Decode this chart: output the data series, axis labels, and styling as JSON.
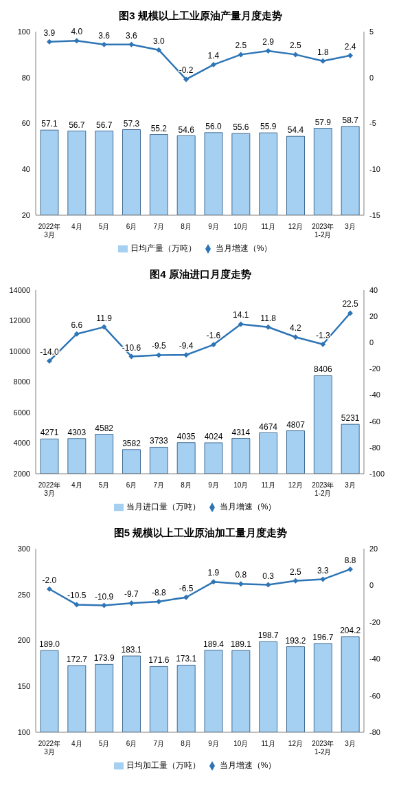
{
  "chart_data": [
    {
      "type": "bar",
      "title": "图3  规模以上工业原油产量月度走势",
      "categories": [
        "2022年\n3月",
        "4月",
        "5月",
        "6月",
        "7月",
        "8月",
        "9月",
        "10月",
        "11月",
        "12月",
        "2023年\n1-2月",
        "3月"
      ],
      "series": [
        {
          "name": "日均产量（万吨）",
          "color": "#a6d0f2",
          "values": [
            57.1,
            56.7,
            56.7,
            57.3,
            55.2,
            54.6,
            56.0,
            55.6,
            55.9,
            54.4,
            57.9,
            58.7
          ],
          "value_labels": [
            "57.1",
            "56.7",
            "56.7",
            "57.3",
            "55.2",
            "54.6",
            "56.0",
            "55.6",
            "55.9",
            "54.4",
            "57.9",
            "58.7"
          ]
        },
        {
          "name": "当月增速（%）",
          "type": "line",
          "axis": "y2",
          "color": "#2e75b6",
          "values": [
            3.9,
            4.0,
            3.6,
            3.6,
            3.0,
            -0.2,
            1.4,
            2.5,
            2.9,
            2.5,
            1.8,
            2.4
          ],
          "value_labels": [
            "3.9",
            "4.0",
            "3.6",
            "3.6",
            "3.0",
            "-0.2",
            "1.4",
            "2.5",
            "2.9",
            "2.5",
            "1.8",
            "2.4"
          ]
        }
      ],
      "ylim": [
        20,
        100
      ],
      "yticks": [
        20,
        40,
        60,
        80,
        100
      ],
      "y2lim": [
        -15,
        5
      ],
      "y2ticks": [
        -15,
        -10,
        -5,
        0,
        5
      ],
      "legend": "bottom",
      "grid": false,
      "marker": "diamond"
    },
    {
      "type": "bar",
      "title": "图4  原油进口月度走势",
      "categories": [
        "2022年\n3月",
        "4月",
        "5月",
        "6月",
        "7月",
        "8月",
        "9月",
        "10月",
        "11月",
        "12月",
        "2023年\n1-2月",
        "3月"
      ],
      "series": [
        {
          "name": "当月进口量（万吨）",
          "color": "#a6d0f2",
          "values": [
            4271,
            4303,
            4582,
            3582,
            3733,
            4035,
            4024,
            4314,
            4674,
            4807,
            8406,
            5231
          ],
          "value_labels": [
            "4271",
            "4303",
            "4582",
            "3582",
            "3733",
            "4035",
            "4024",
            "4314",
            "4674",
            "4807",
            "8406",
            "5231"
          ]
        },
        {
          "name": "当月增速（%）",
          "type": "line",
          "axis": "y2",
          "color": "#2e75b6",
          "values": [
            -14.0,
            6.6,
            11.9,
            -10.6,
            -9.5,
            -9.4,
            -1.6,
            14.1,
            11.8,
            4.2,
            -1.3,
            22.5
          ],
          "value_labels": [
            "-14.0",
            "6.6",
            "11.9",
            "-10.6",
            "-9.5",
            "-9.4",
            "-1.6",
            "14.1",
            "11.8",
            "4.2",
            "-1.3",
            "22.5"
          ]
        }
      ],
      "ylim": [
        2000,
        14000
      ],
      "yticks": [
        2000,
        4000,
        6000,
        8000,
        10000,
        12000,
        14000
      ],
      "y2lim": [
        -100,
        40
      ],
      "y2ticks": [
        -100,
        -80,
        -60,
        -40,
        -20,
        0,
        20,
        40
      ],
      "legend": "bottom",
      "grid": false,
      "marker": "diamond"
    },
    {
      "type": "bar",
      "title": "图5  规模以上工业原油加工量月度走势",
      "categories": [
        "2022年\n3月",
        "4月",
        "5月",
        "6月",
        "7月",
        "8月",
        "9月",
        "10月",
        "11月",
        "12月",
        "2023年\n1-2月",
        "3月"
      ],
      "series": [
        {
          "name": "日均加工量（万吨）",
          "color": "#a6d0f2",
          "values": [
            189.0,
            172.7,
            173.9,
            183.1,
            171.6,
            173.1,
            189.4,
            189.1,
            198.7,
            193.2,
            196.7,
            204.2
          ],
          "value_labels": [
            "189.0",
            "172.7",
            "173.9",
            "183.1",
            "171.6",
            "173.1",
            "189.4",
            "189.1",
            "198.7",
            "193.2",
            "196.7",
            "204.2"
          ]
        },
        {
          "name": "当月增速（%）",
          "type": "line",
          "axis": "y2",
          "color": "#2e75b6",
          "values": [
            -2.0,
            -10.5,
            -10.9,
            -9.7,
            -8.8,
            -6.5,
            1.9,
            0.8,
            0.3,
            2.5,
            3.3,
            8.8
          ],
          "value_labels": [
            "-2.0",
            "-10.5",
            "-10.9",
            "-9.7",
            "-8.8",
            "-6.5",
            "1.9",
            "0.8",
            "0.3",
            "2.5",
            "3.3",
            "8.8"
          ]
        }
      ],
      "ylim": [
        100,
        300
      ],
      "yticks": [
        100,
        150,
        200,
        250,
        300
      ],
      "y2lim": [
        -80,
        20
      ],
      "y2ticks": [
        -80,
        -60,
        -40,
        -20,
        0,
        20
      ],
      "legend": "bottom",
      "grid": false,
      "marker": "diamond"
    }
  ]
}
